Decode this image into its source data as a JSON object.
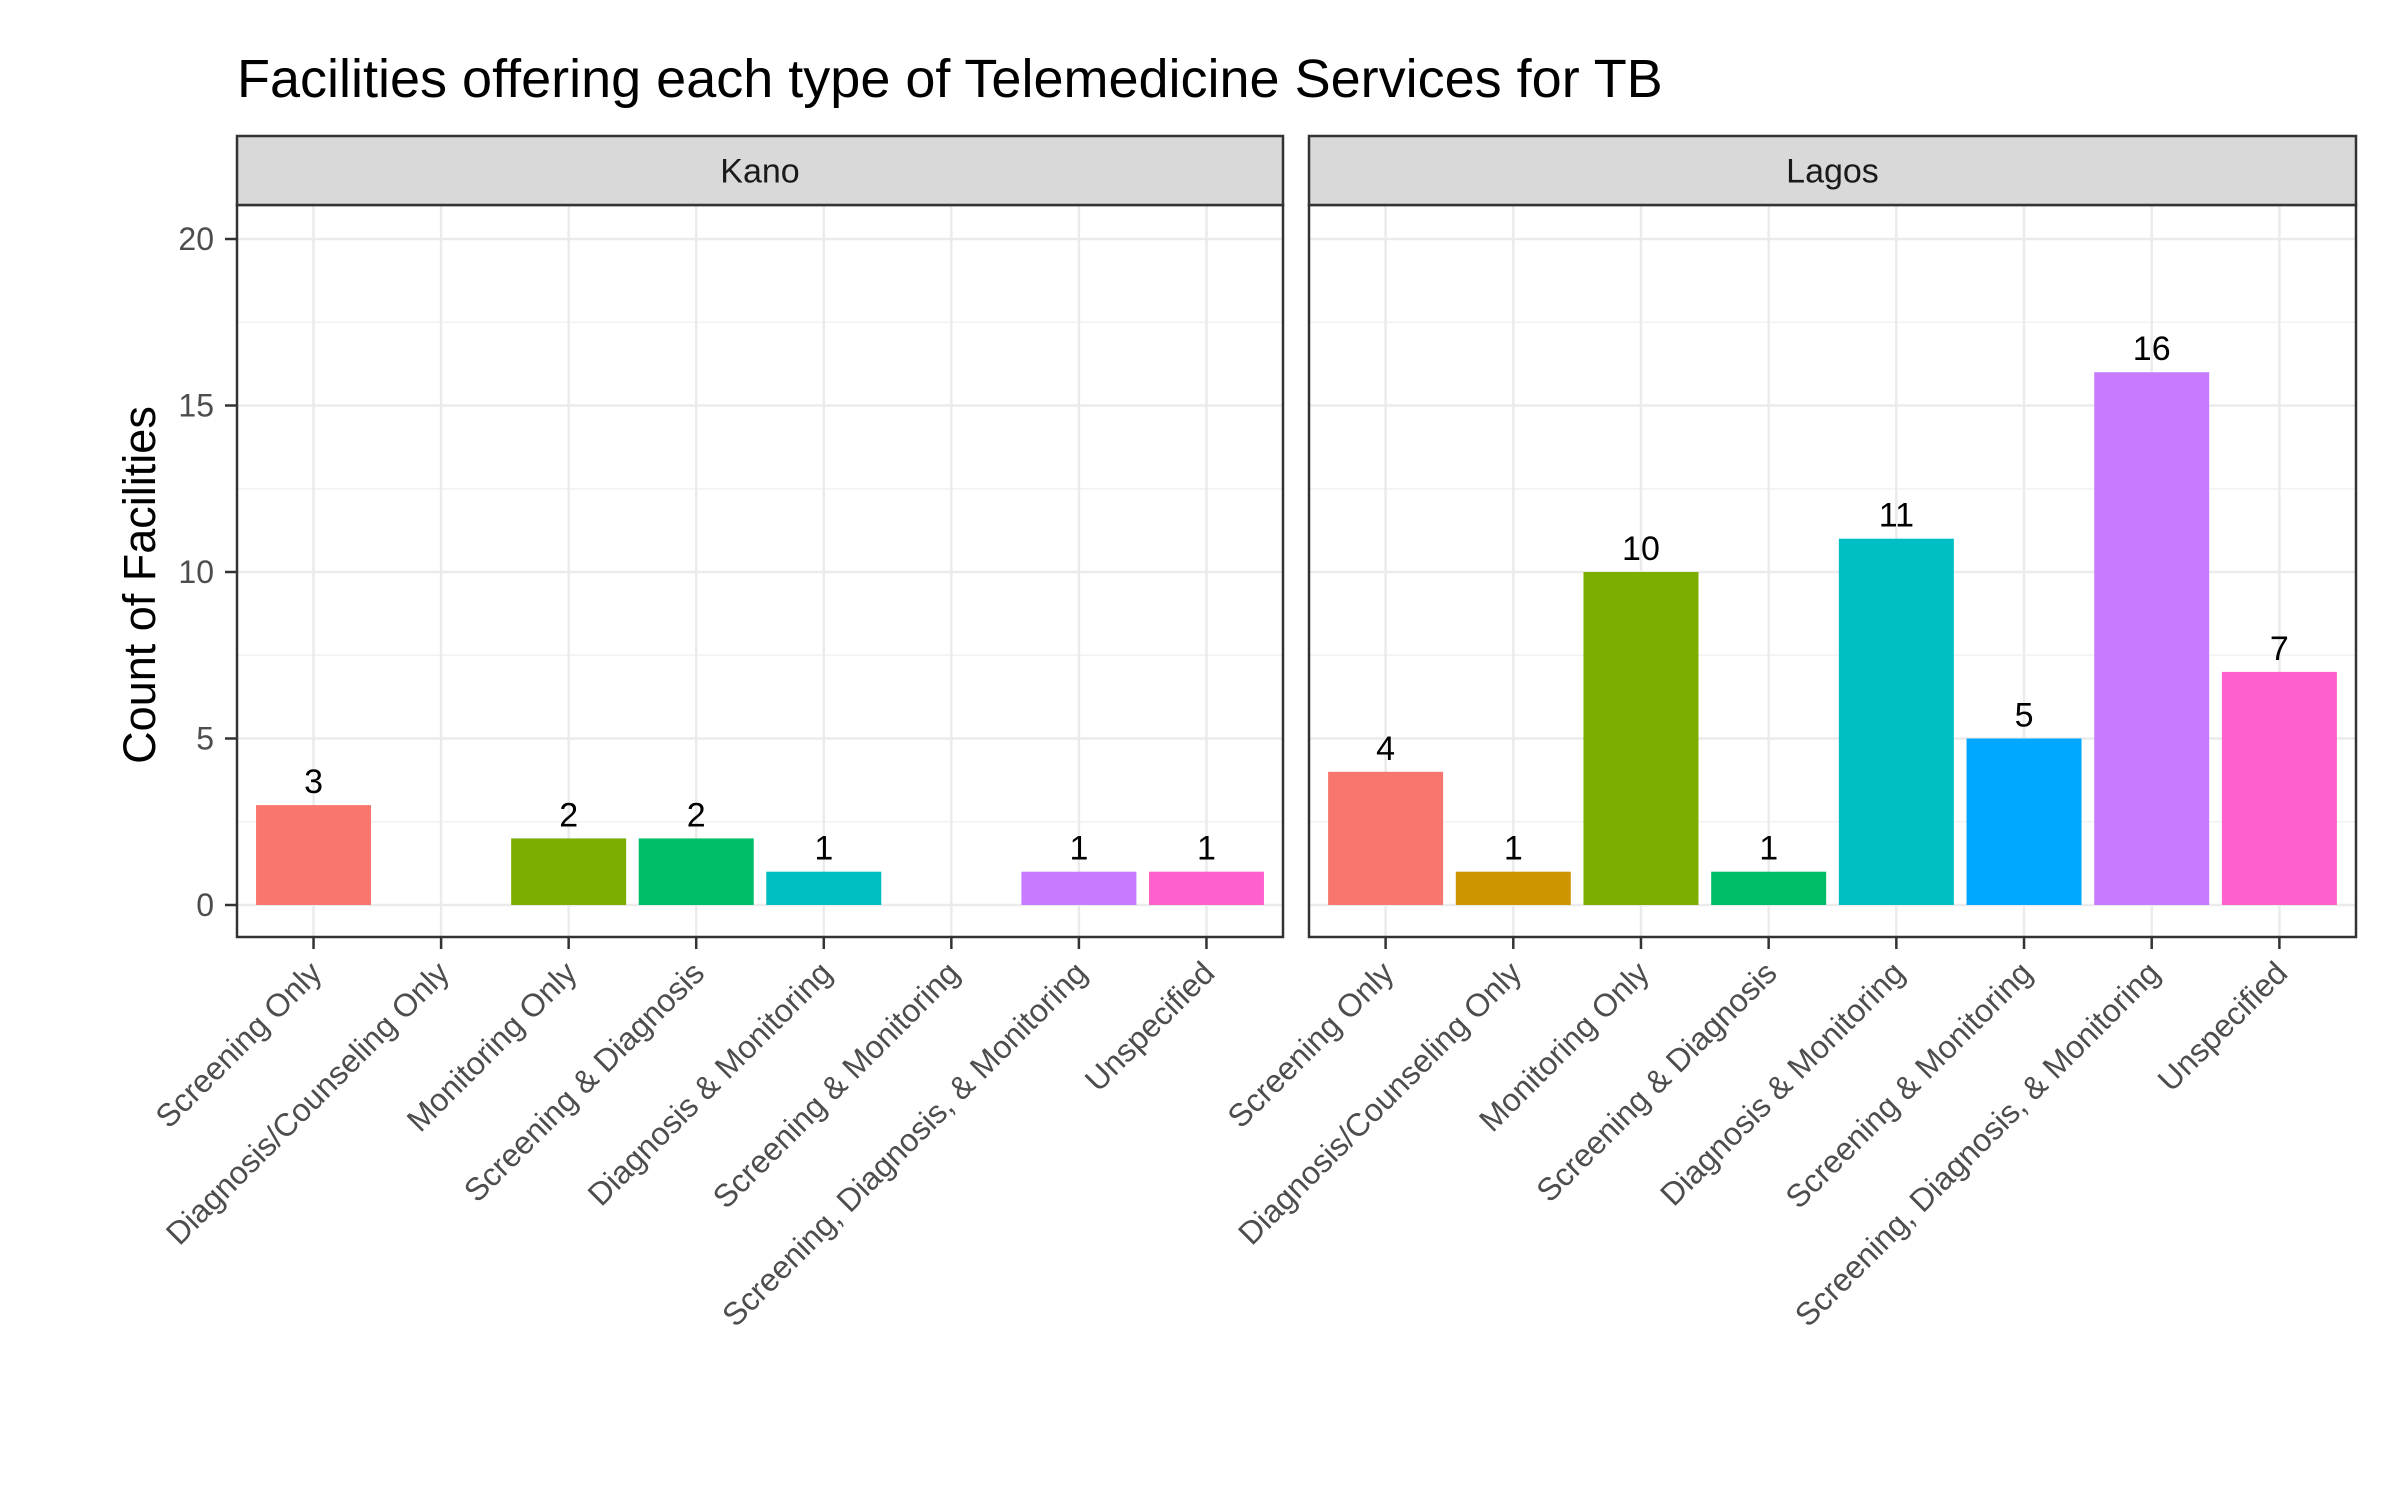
{
  "chart_data": {
    "type": "bar",
    "title": "Facilities offering each type of Telemedicine Services for TB",
    "xlabel": "",
    "ylabel": "Count of Facilities",
    "ylim": [
      0,
      21
    ],
    "yticks": [
      0,
      5,
      10,
      15,
      20
    ],
    "grid": true,
    "legend": "none",
    "categories": [
      "Screening Only",
      "Diagnosis/Counseling Only",
      "Monitoring Only",
      "Screening & Diagnosis",
      "Diagnosis & Monitoring",
      "Screening & Monitoring",
      "Screening, Diagnosis, & Monitoring",
      "Unspecified"
    ],
    "colors": [
      "#F8766D",
      "#CD9600",
      "#7CAE00",
      "#00BE67",
      "#00BFC4",
      "#00A9FF",
      "#C77CFF",
      "#FF61CC"
    ],
    "facets": [
      {
        "name": "Kano",
        "values": [
          3,
          null,
          2,
          2,
          1,
          null,
          1,
          1
        ]
      },
      {
        "name": "Lagos",
        "values": [
          4,
          1,
          10,
          1,
          11,
          5,
          16,
          7
        ]
      }
    ]
  }
}
